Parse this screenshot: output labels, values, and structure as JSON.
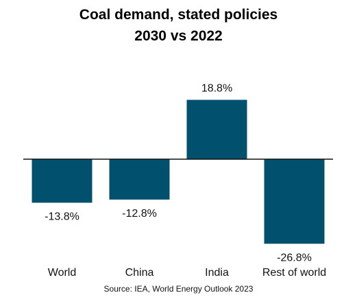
{
  "chart_data": {
    "type": "bar",
    "title": "Coal demand, stated policies",
    "subtitle": "2030 vs 2022",
    "categories": [
      "World",
      "China",
      "India",
      "Rest of world"
    ],
    "values": [
      -13.8,
      -12.8,
      18.8,
      -26.8
    ],
    "value_labels": [
      "-13.8%",
      "-12.8%",
      "18.8%",
      "-26.8%"
    ],
    "unit": "%",
    "ylim": [
      -30,
      22
    ],
    "grid": false,
    "legend": "none",
    "bar_color": "#00506e",
    "axis_color": "#111111",
    "source": "Source: IEA, World Energy Outlook 2023"
  }
}
